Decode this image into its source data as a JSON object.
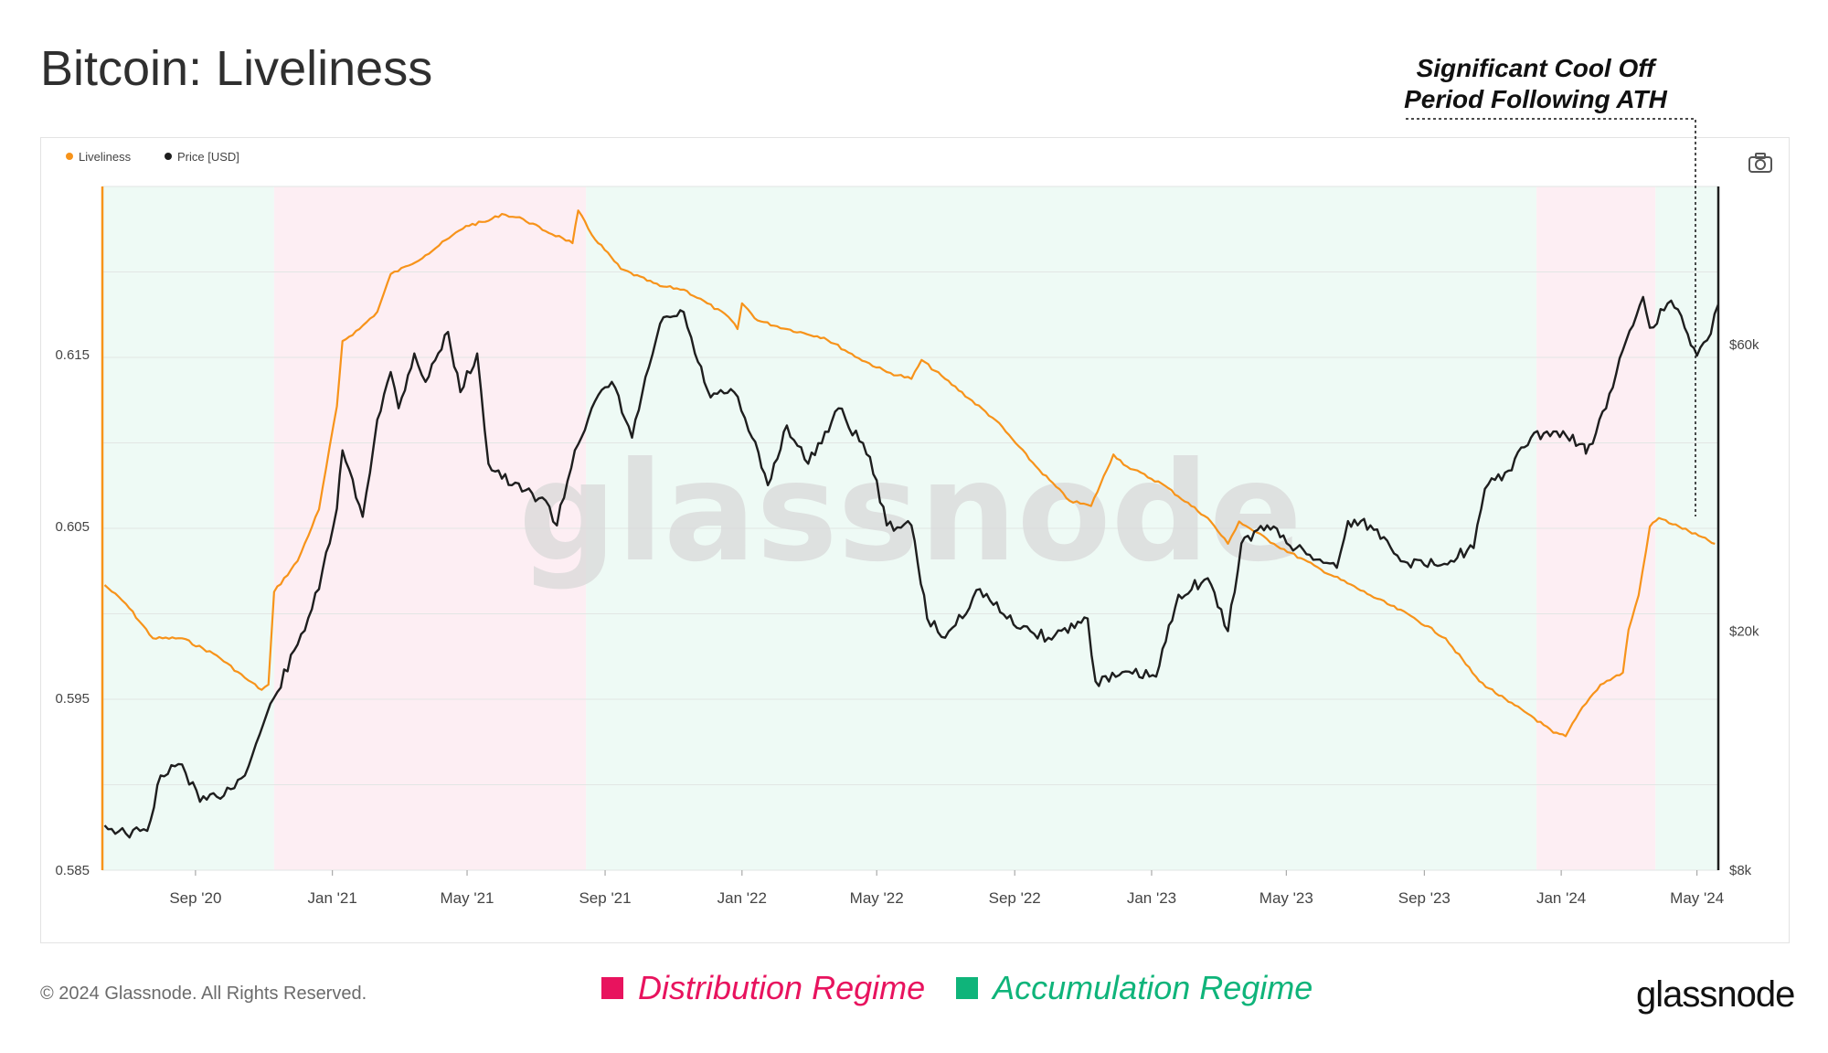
{
  "header": {
    "title": "Bitcoin: Liveliness"
  },
  "annotation": {
    "line1": "Significant Cool Off",
    "line2": "Period Following ATH"
  },
  "footer": {
    "copyright": "© 2024 Glassnode. All Rights Reserved.",
    "brand": "glassnode"
  },
  "regime_legend": [
    {
      "label": "Distribution Regime",
      "color": "#e8135e"
    },
    {
      "label": "Accumulation Regime",
      "color": "#0fb47a"
    }
  ],
  "watermark": "glassnode",
  "icons": {
    "camera": "camera-icon"
  },
  "colors": {
    "liveliness": "#f7931a",
    "price": "#1e1e1e",
    "distribution_bg": "#fdeef3",
    "accumulation_bg": "#eefaf5",
    "watermark": "#d9d9d9"
  },
  "chart_data": {
    "type": "line",
    "legend": [
      "Liveliness",
      "Price [USD]"
    ],
    "legend_position": "top-left",
    "x_ticks": [
      "Sep '20",
      "Jan '21",
      "May '21",
      "Sep '21",
      "Jan '22",
      "May '22",
      "Sep '22",
      "Jan '23",
      "May '23",
      "Sep '23",
      "Jan '24",
      "May '24"
    ],
    "x_tick_dates": [
      "2020-09-01",
      "2021-01-01",
      "2021-05-01",
      "2021-09-01",
      "2022-01-01",
      "2022-05-01",
      "2022-09-01",
      "2023-01-01",
      "2023-05-01",
      "2023-09-01",
      "2024-01-01",
      "2024-05-01"
    ],
    "x_range": [
      "2020-06-10",
      "2024-05-20"
    ],
    "y_left": {
      "label": "",
      "ticks": [
        "0.585",
        "0.595",
        "0.605",
        "0.615"
      ],
      "range": [
        0.585,
        0.6248
      ]
    },
    "y_right": {
      "label": "",
      "scale": "log",
      "ticks": [
        "$8k",
        "$20k",
        "$60k"
      ],
      "tick_values": [
        8000,
        20000,
        60000
      ],
      "range": [
        8000,
        110000
      ]
    },
    "regimes": [
      {
        "type": "accumulation",
        "start": "2020-06-10",
        "end": "2020-11-10"
      },
      {
        "type": "distribution",
        "start": "2020-11-10",
        "end": "2021-08-15"
      },
      {
        "type": "accumulation",
        "start": "2021-08-15",
        "end": "2023-12-10"
      },
      {
        "type": "distribution",
        "start": "2023-12-10",
        "end": "2024-03-25"
      },
      {
        "type": "accumulation",
        "start": "2024-03-25",
        "end": "2024-05-20"
      }
    ],
    "series": [
      {
        "name": "Liveliness",
        "axis": "left",
        "points": [
          [
            "2020-06-12",
            0.6016
          ],
          [
            "2020-07-01",
            0.6005
          ],
          [
            "2020-07-25",
            0.5985
          ],
          [
            "2020-08-20",
            0.5985
          ],
          [
            "2020-09-20",
            0.5975
          ],
          [
            "2020-10-15",
            0.5962
          ],
          [
            "2020-10-30",
            0.5955
          ],
          [
            "2020-11-05",
            0.5958
          ],
          [
            "2020-11-10",
            0.6012
          ],
          [
            "2020-12-01",
            0.603
          ],
          [
            "2020-12-20",
            0.606
          ],
          [
            "2021-01-05",
            0.612
          ],
          [
            "2021-01-10",
            0.6158
          ],
          [
            "2021-01-25",
            0.6165
          ],
          [
            "2021-02-10",
            0.6175
          ],
          [
            "2021-02-22",
            0.6197
          ],
          [
            "2021-03-10",
            0.6202
          ],
          [
            "2021-03-25",
            0.6208
          ],
          [
            "2021-04-15",
            0.6218
          ],
          [
            "2021-04-30",
            0.6225
          ],
          [
            "2021-05-20",
            0.6228
          ],
          [
            "2021-06-01",
            0.6232
          ],
          [
            "2021-06-20",
            0.6229
          ],
          [
            "2021-07-10",
            0.6222
          ],
          [
            "2021-07-25",
            0.6218
          ],
          [
            "2021-08-03",
            0.6215
          ],
          [
            "2021-08-08",
            0.6234
          ],
          [
            "2021-08-20",
            0.622
          ],
          [
            "2021-09-15",
            0.62
          ],
          [
            "2021-10-20",
            0.619
          ],
          [
            "2021-11-10",
            0.6188
          ],
          [
            "2021-12-01",
            0.618
          ],
          [
            "2021-12-20",
            0.6172
          ],
          [
            "2021-12-28",
            0.6165
          ],
          [
            "2022-01-01",
            0.618
          ],
          [
            "2022-01-15",
            0.617
          ],
          [
            "2022-02-10",
            0.6165
          ],
          [
            "2022-03-15",
            0.616
          ],
          [
            "2022-04-15",
            0.6148
          ],
          [
            "2022-05-10",
            0.614
          ],
          [
            "2022-06-01",
            0.6136
          ],
          [
            "2022-06-10",
            0.6147
          ],
          [
            "2022-07-01",
            0.6136
          ],
          [
            "2022-08-15",
            0.6112
          ],
          [
            "2022-09-20",
            0.6085
          ],
          [
            "2022-10-20",
            0.6065
          ],
          [
            "2022-11-08",
            0.6062
          ],
          [
            "2022-11-28",
            0.6092
          ],
          [
            "2022-12-10",
            0.6085
          ],
          [
            "2023-01-10",
            0.6075
          ],
          [
            "2023-02-20",
            0.6055
          ],
          [
            "2023-03-10",
            0.604
          ],
          [
            "2023-03-20",
            0.6053
          ],
          [
            "2023-04-20",
            0.604
          ],
          [
            "2023-06-01",
            0.6025
          ],
          [
            "2023-07-15",
            0.601
          ],
          [
            "2023-08-20",
            0.5998
          ],
          [
            "2023-09-20",
            0.5985
          ],
          [
            "2023-10-20",
            0.596
          ],
          [
            "2023-11-15",
            0.5948
          ],
          [
            "2023-12-05",
            0.594
          ],
          [
            "2023-12-25",
            0.593
          ],
          [
            "2024-01-05",
            0.5928
          ],
          [
            "2024-01-20",
            0.5945
          ],
          [
            "2024-02-05",
            0.5958
          ],
          [
            "2024-02-25",
            0.5965
          ],
          [
            "2024-03-01",
            0.599
          ],
          [
            "2024-03-10",
            0.601
          ],
          [
            "2024-03-20",
            0.605
          ],
          [
            "2024-03-28",
            0.6055
          ],
          [
            "2024-04-15",
            0.605
          ],
          [
            "2024-05-17",
            0.604
          ]
        ]
      },
      {
        "name": "Price [USD]",
        "axis": "right",
        "points": [
          [
            "2020-06-12",
            9500
          ],
          [
            "2020-07-01",
            9200
          ],
          [
            "2020-07-20",
            9300
          ],
          [
            "2020-08-01",
            11500
          ],
          [
            "2020-08-20",
            12000
          ],
          [
            "2020-09-05",
            10400
          ],
          [
            "2020-09-20",
            10600
          ],
          [
            "2020-10-15",
            11500
          ],
          [
            "2020-10-25",
            13000
          ],
          [
            "2020-11-10",
            15500
          ],
          [
            "2020-12-01",
            19000
          ],
          [
            "2020-12-20",
            23500
          ],
          [
            "2021-01-05",
            32000
          ],
          [
            "2021-01-10",
            40000
          ],
          [
            "2021-01-28",
            31000
          ],
          [
            "2021-02-10",
            45000
          ],
          [
            "2021-02-22",
            54000
          ],
          [
            "2021-03-01",
            47000
          ],
          [
            "2021-03-15",
            58000
          ],
          [
            "2021-03-25",
            52000
          ],
          [
            "2021-04-14",
            63000
          ],
          [
            "2021-04-25",
            50000
          ],
          [
            "2021-05-10",
            58000
          ],
          [
            "2021-05-20",
            38000
          ],
          [
            "2021-06-10",
            35000
          ],
          [
            "2021-07-10",
            33000
          ],
          [
            "2021-07-20",
            30000
          ],
          [
            "2021-08-05",
            40000
          ],
          [
            "2021-08-20",
            47000
          ],
          [
            "2021-09-07",
            52000
          ],
          [
            "2021-09-25",
            42000
          ],
          [
            "2021-10-10",
            55000
          ],
          [
            "2021-10-20",
            65000
          ],
          [
            "2021-11-10",
            68000
          ],
          [
            "2021-11-20",
            58000
          ],
          [
            "2021-12-04",
            49000
          ],
          [
            "2021-12-25",
            50000
          ],
          [
            "2022-01-10",
            42000
          ],
          [
            "2022-01-24",
            35000
          ],
          [
            "2022-02-10",
            44000
          ],
          [
            "2022-03-01",
            38000
          ],
          [
            "2022-03-28",
            47000
          ],
          [
            "2022-04-25",
            39000
          ],
          [
            "2022-05-10",
            30000
          ],
          [
            "2022-06-01",
            30000
          ],
          [
            "2022-06-15",
            21000
          ],
          [
            "2022-07-01",
            19500
          ],
          [
            "2022-08-01",
            23500
          ],
          [
            "2022-08-25",
            21000
          ],
          [
            "2022-09-15",
            20000
          ],
          [
            "2022-10-01",
            19500
          ],
          [
            "2022-11-05",
            21000
          ],
          [
            "2022-11-12",
            16500
          ],
          [
            "2022-12-15",
            17000
          ],
          [
            "2023-01-05",
            16800
          ],
          [
            "2023-01-25",
            23000
          ],
          [
            "2023-02-20",
            24500
          ],
          [
            "2023-03-10",
            20000
          ],
          [
            "2023-03-22",
            28000
          ],
          [
            "2023-04-14",
            30000
          ],
          [
            "2023-05-10",
            27500
          ],
          [
            "2023-06-15",
            25500
          ],
          [
            "2023-06-25",
            30500
          ],
          [
            "2023-07-15",
            30000
          ],
          [
            "2023-08-17",
            26000
          ],
          [
            "2023-09-10",
            25800
          ],
          [
            "2023-10-15",
            27500
          ],
          [
            "2023-10-25",
            34500
          ],
          [
            "2023-11-15",
            37000
          ],
          [
            "2023-12-05",
            42000
          ],
          [
            "2023-12-25",
            43000
          ],
          [
            "2024-01-20",
            41000
          ],
          [
            "2024-01-23",
            39500
          ],
          [
            "2024-02-10",
            47000
          ],
          [
            "2024-02-28",
            61000
          ],
          [
            "2024-03-14",
            72000
          ],
          [
            "2024-03-20",
            64000
          ],
          [
            "2024-04-08",
            71000
          ],
          [
            "2024-04-20",
            64000
          ],
          [
            "2024-05-01",
            57500
          ],
          [
            "2024-05-10",
            61000
          ],
          [
            "2024-05-20",
            70000
          ]
        ]
      }
    ],
    "annotation_marker": {
      "date": "2024-05-01",
      "text": "Significant Cool Off Period Following ATH"
    }
  }
}
